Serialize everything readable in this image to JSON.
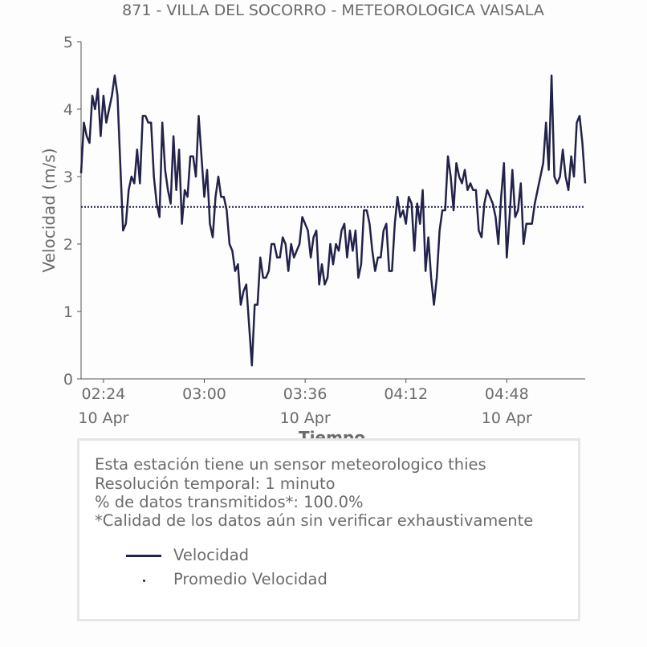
{
  "chart_data": {
    "type": "line",
    "title": "871 - VILLA DEL SOCORRO - METEOROLOGICA VAISALA",
    "xlabel": "Tiempo",
    "ylabel": "Velocidad (m/s)",
    "ylim": [
      0,
      5
    ],
    "xlim": [
      "02:16",
      "05:16"
    ],
    "yticks": [
      "0",
      "1",
      "2",
      "3",
      "4",
      "5"
    ],
    "xticks": [
      {
        "time": "02:24",
        "label": "02:24",
        "date": "10 Apr"
      },
      {
        "time": "03:00",
        "label": "03:00",
        "date": ""
      },
      {
        "time": "03:36",
        "label": "03:36",
        "date": "10 Apr"
      },
      {
        "time": "04:12",
        "label": "04:12",
        "date": ""
      },
      {
        "time": "04:48",
        "label": "04:48",
        "date": "10 Apr"
      }
    ],
    "grid": false,
    "color": "#22224a",
    "series": [
      {
        "name": "Velocidad",
        "style": "solid",
        "x_start": "02:16",
        "x_step_minutes": 1,
        "values": [
          3.05,
          3.8,
          3.6,
          3.5,
          4.2,
          4.0,
          4.3,
          3.6,
          4.2,
          3.8,
          4.0,
          4.2,
          4.5,
          4.2,
          3.2,
          2.2,
          2.3,
          2.8,
          3.0,
          2.9,
          3.4,
          2.9,
          3.9,
          3.9,
          3.8,
          3.8,
          3.0,
          2.6,
          2.4,
          3.8,
          3.1,
          2.8,
          2.6,
          3.6,
          2.8,
          3.4,
          2.3,
          2.8,
          2.7,
          3.3,
          3.3,
          3.0,
          3.9,
          3.3,
          2.7,
          3.1,
          2.3,
          2.1,
          2.7,
          3.0,
          2.7,
          2.7,
          2.5,
          2.0,
          1.9,
          1.6,
          1.7,
          1.1,
          1.3,
          1.4,
          0.8,
          0.2,
          1.1,
          1.1,
          1.8,
          1.5,
          1.5,
          1.6,
          2.0,
          2.0,
          1.8,
          1.8,
          2.1,
          2.0,
          1.6,
          2.0,
          1.8,
          1.9,
          2.0,
          2.4,
          2.3,
          2.2,
          1.8,
          2.1,
          2.2,
          1.4,
          1.7,
          1.4,
          1.5,
          2.0,
          1.7,
          2.0,
          1.9,
          2.2,
          2.3,
          1.8,
          2.2,
          1.9,
          2.2,
          1.5,
          1.7,
          2.5,
          2.5,
          2.3,
          1.9,
          1.6,
          1.8,
          1.8,
          2.2,
          2.3,
          1.6,
          1.6,
          2.3,
          2.7,
          2.4,
          2.5,
          2.3,
          2.7,
          2.6,
          1.9,
          2.6,
          2.3,
          2.8,
          1.6,
          2.1,
          1.5,
          1.1,
          1.5,
          2.2,
          2.5,
          2.5,
          3.3,
          3.0,
          2.5,
          3.2,
          3.0,
          2.9,
          3.1,
          2.8,
          2.9,
          2.8,
          2.8,
          2.2,
          2.1,
          2.6,
          2.8,
          2.7,
          2.6,
          2.4,
          2.0,
          2.7,
          3.2,
          1.8,
          2.4,
          3.1,
          2.4,
          2.5,
          2.9,
          2.0,
          2.3,
          2.3,
          2.3,
          2.6,
          2.8,
          3.0,
          3.2,
          3.8,
          3.1,
          4.5,
          3.0,
          2.9,
          3.0,
          3.4,
          3.0,
          2.8,
          3.3,
          3.0,
          3.8,
          3.9,
          3.5,
          2.9
        ]
      },
      {
        "name": "Promedio Velocidad",
        "style": "dotted",
        "value": 2.55
      }
    ]
  },
  "notes": [
    "Esta estación tiene un sensor meteorologico thies",
    "Resolución temporal: 1 minuto",
    "% de datos transmitidos*: 100.0%",
    "*Calidad de los datos aún sin verificar exhaustivamente"
  ],
  "legend": [
    {
      "label": "Velocidad",
      "marker": "line"
    },
    {
      "label": "Promedio Velocidad",
      "marker": "dot"
    }
  ]
}
